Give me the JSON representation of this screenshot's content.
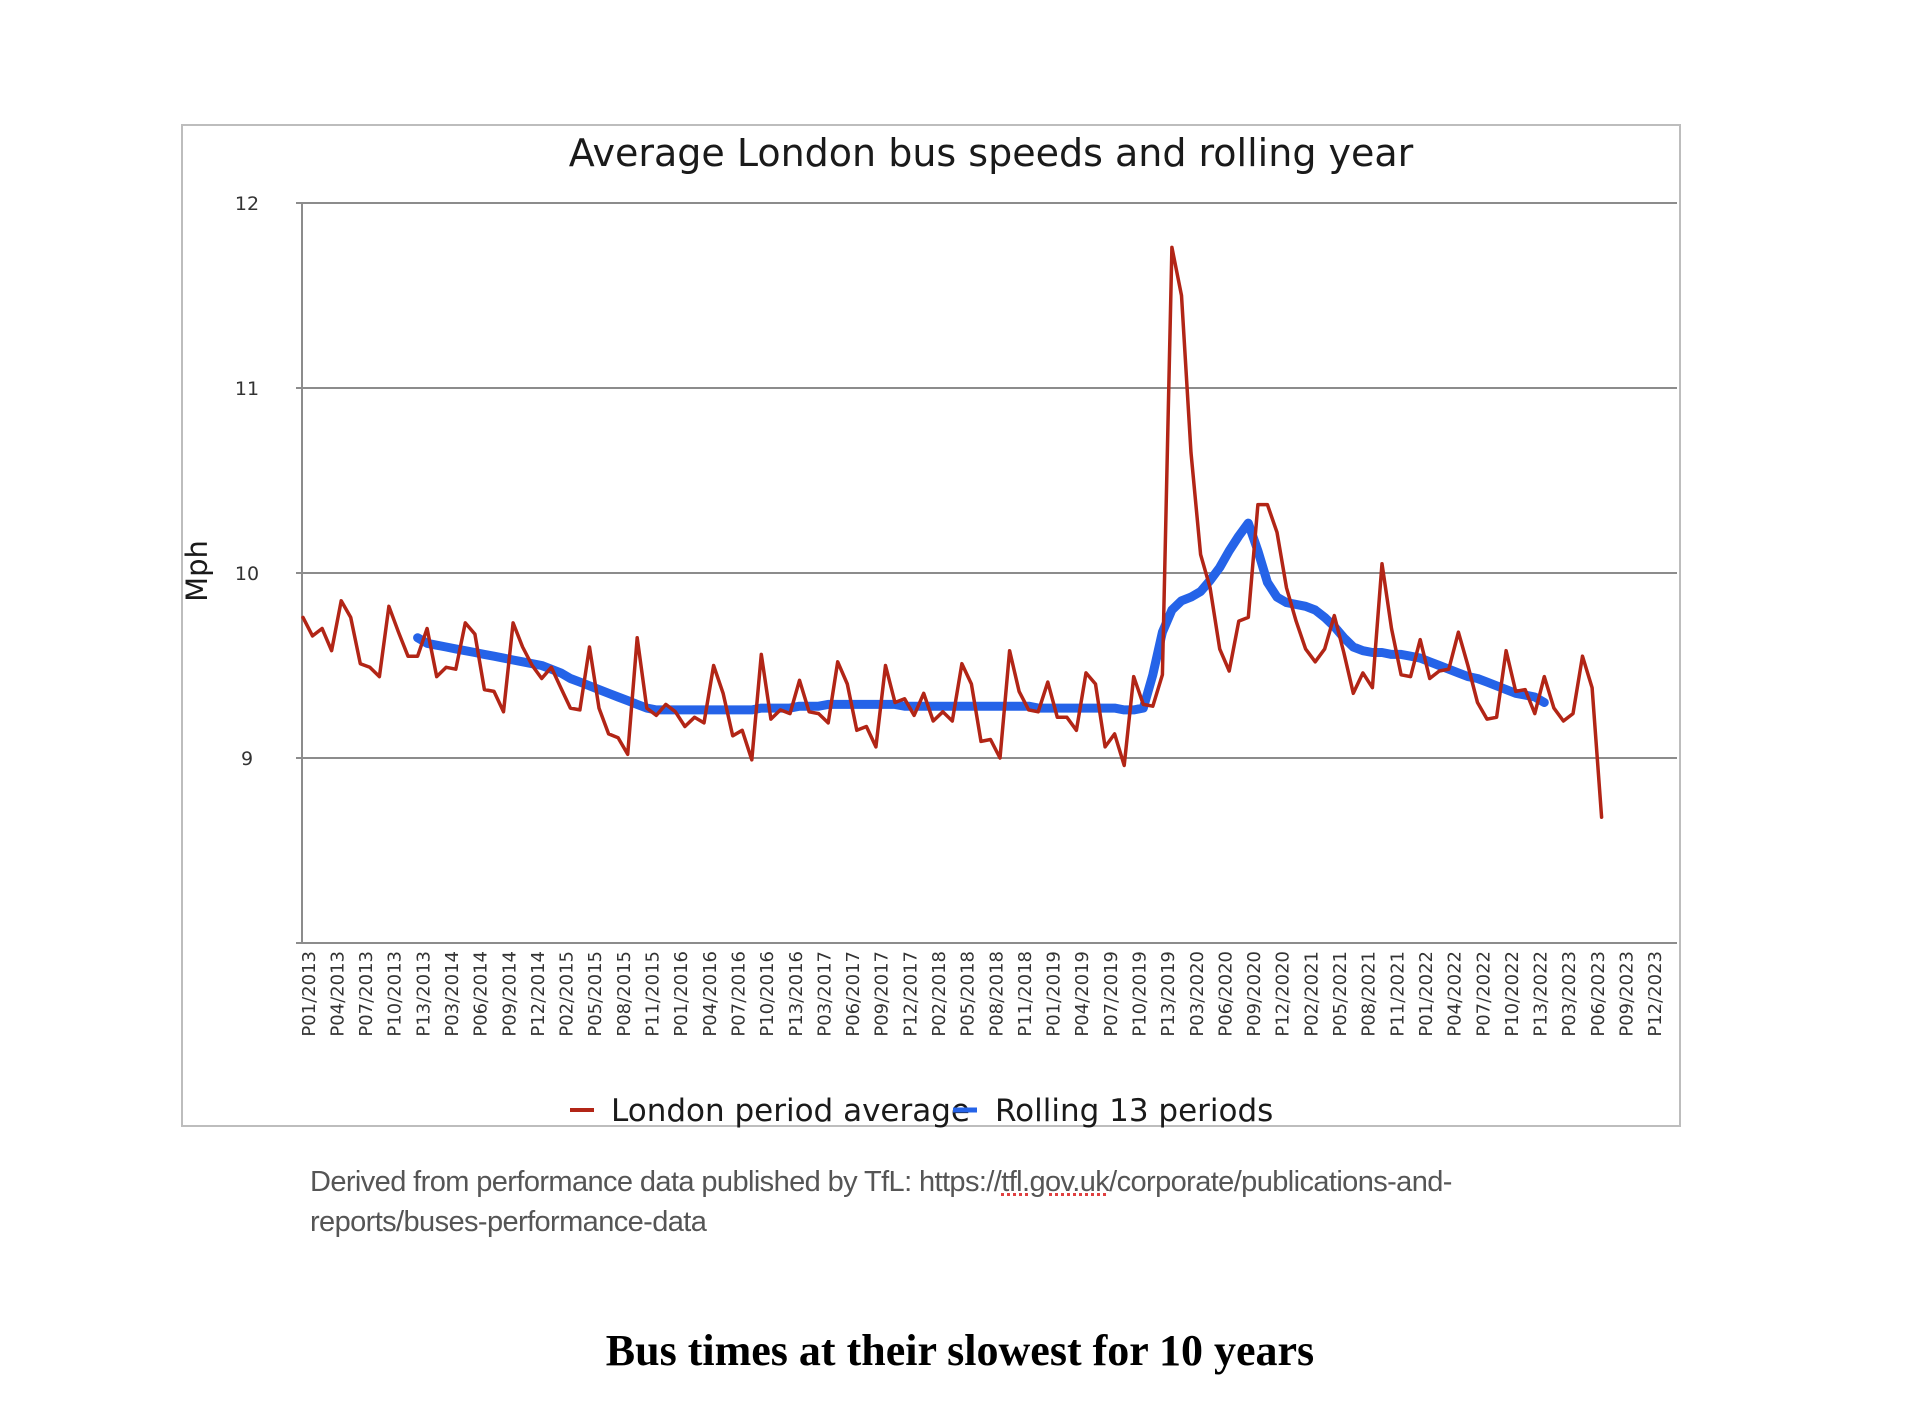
{
  "chart_data": {
    "type": "line",
    "title": "Average London bus speeds and rolling year",
    "xlabel": "",
    "ylabel": "Mph",
    "ylim": [
      8,
      12
    ],
    "yticks": [
      9,
      10,
      11,
      12
    ],
    "grid": true,
    "legend_position": "bottom",
    "x_tick_labels": [
      "P01/2013",
      "P04/2013",
      "P07/2013",
      "P10/2013",
      "P13/2013",
      "P03/2014",
      "P06/2014",
      "P09/2014",
      "P12/2014",
      "P02/2015",
      "P05/2015",
      "P08/2015",
      "P11/2015",
      "P01/2016",
      "P04/2016",
      "P07/2016",
      "P10/2016",
      "P13/2016",
      "P03/2017",
      "P06/2017",
      "P09/2017",
      "P12/2017",
      "P02/2018",
      "P05/2018",
      "P08/2018",
      "P11/2018",
      "P01/2019",
      "P04/2019",
      "P07/2019",
      "P10/2019",
      "P13/2019",
      "P03/2020",
      "P06/2020",
      "P09/2020",
      "P12/2020",
      "P02/2021",
      "P05/2021",
      "P08/2021",
      "P11/2021",
      "P01/2022",
      "P04/2022",
      "P07/2022",
      "P10/2022",
      "P13/2022",
      "P03/2023",
      "P06/2023",
      "P09/2023",
      "P12/2023"
    ],
    "x_period_count": 144,
    "x_tick_every": 3,
    "series": [
      {
        "name": "London period average",
        "color": "#b22516",
        "start_index": 0,
        "values": [
          9.76,
          9.66,
          9.7,
          9.58,
          9.85,
          9.76,
          9.51,
          9.49,
          9.44,
          9.82,
          9.68,
          9.55,
          9.55,
          9.7,
          9.44,
          9.49,
          9.48,
          9.73,
          9.67,
          9.37,
          9.36,
          9.25,
          9.73,
          9.6,
          9.5,
          9.43,
          9.49,
          9.38,
          9.27,
          9.26,
          9.6,
          9.27,
          9.13,
          9.11,
          9.02,
          9.65,
          9.27,
          9.23,
          9.29,
          9.25,
          9.17,
          9.22,
          9.19,
          9.5,
          9.35,
          9.12,
          9.15,
          8.99,
          9.56,
          9.21,
          9.26,
          9.24,
          9.42,
          9.25,
          9.24,
          9.19,
          9.52,
          9.4,
          9.15,
          9.17,
          9.06,
          9.5,
          9.3,
          9.32,
          9.23,
          9.35,
          9.2,
          9.25,
          9.2,
          9.51,
          9.4,
          9.09,
          9.1,
          9.0,
          9.58,
          9.36,
          9.26,
          9.25,
          9.41,
          9.22,
          9.22,
          9.15,
          9.46,
          9.4,
          9.06,
          9.13,
          8.96,
          9.44,
          9.29,
          9.28,
          9.45,
          11.76,
          11.5,
          10.65,
          10.1,
          9.92,
          9.59,
          9.47,
          9.74,
          9.76,
          10.37,
          10.37,
          10.22,
          9.92,
          9.74,
          9.59,
          9.52,
          9.59,
          9.77,
          9.57,
          9.35,
          9.46,
          9.38,
          10.05,
          9.7,
          9.45,
          9.44,
          9.64,
          9.43,
          9.47,
          9.48,
          9.68,
          9.5,
          9.3,
          9.21,
          9.22,
          9.58,
          9.36,
          9.37,
          9.24,
          9.44,
          9.27,
          9.2,
          9.24,
          9.55,
          9.38,
          8.68
        ]
      },
      {
        "name": "Rolling 13 periods",
        "color": "#2563e8",
        "start_index": 12,
        "values": [
          9.65,
          9.62,
          9.61,
          9.6,
          9.59,
          9.58,
          9.57,
          9.56,
          9.55,
          9.54,
          9.53,
          9.52,
          9.51,
          9.5,
          9.48,
          9.46,
          9.43,
          9.41,
          9.39,
          9.37,
          9.35,
          9.33,
          9.31,
          9.29,
          9.27,
          9.26,
          9.26,
          9.26,
          9.26,
          9.26,
          9.26,
          9.26,
          9.26,
          9.26,
          9.26,
          9.26,
          9.27,
          9.27,
          9.27,
          9.27,
          9.28,
          9.28,
          9.28,
          9.29,
          9.29,
          9.29,
          9.29,
          9.29,
          9.29,
          9.29,
          9.29,
          9.28,
          9.28,
          9.28,
          9.28,
          9.28,
          9.28,
          9.28,
          9.28,
          9.28,
          9.28,
          9.28,
          9.28,
          9.28,
          9.28,
          9.27,
          9.27,
          9.27,
          9.27,
          9.27,
          9.27,
          9.27,
          9.27,
          9.27,
          9.26,
          9.26,
          9.27,
          9.45,
          9.68,
          9.8,
          9.85,
          9.87,
          9.9,
          9.96,
          10.03,
          10.12,
          10.2,
          10.27,
          10.12,
          9.95,
          9.87,
          9.84,
          9.83,
          9.82,
          9.8,
          9.76,
          9.71,
          9.65,
          9.6,
          9.58,
          9.57,
          9.57,
          9.56,
          9.56,
          9.55,
          9.54,
          9.52,
          9.5,
          9.48,
          9.46,
          9.44,
          9.43,
          9.41,
          9.39,
          9.37,
          9.35,
          9.34,
          9.33,
          9.3
        ]
      }
    ]
  },
  "legend": {
    "items": [
      {
        "label": "London period average",
        "color": "#b22516"
      },
      {
        "label": "Rolling 13 periods",
        "color": "#2563e8"
      }
    ]
  },
  "source_note": {
    "prefix": "Derived from performance data published by TfL: https://",
    "underlined": "tfl.gov.uk",
    "suffix": "/corporate/publications-and-",
    "line2": "reports/buses-performance-data"
  },
  "caption": "Bus times at their slowest for 10 years"
}
